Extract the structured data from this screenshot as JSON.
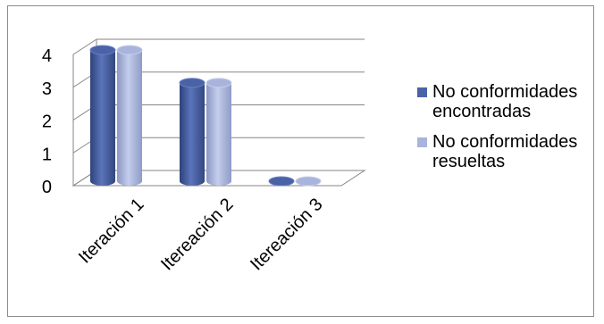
{
  "chart_data": {
    "type": "bar",
    "style": "3d-cylinder",
    "categories": [
      "Iteración 1",
      "Itereación 2",
      "Itereación 3"
    ],
    "series": [
      {
        "name": "No conformidades encontradas",
        "values": [
          4,
          3,
          0
        ],
        "color": "#4a62a6"
      },
      {
        "name": "No conformidades resueltas",
        "values": [
          4,
          3,
          0
        ],
        "color": "#a8b4dc"
      }
    ],
    "ylim": [
      0,
      4
    ],
    "yticks": [
      "0",
      "1",
      "2",
      "3",
      "4"
    ],
    "grid": true,
    "legend_position": "right"
  }
}
